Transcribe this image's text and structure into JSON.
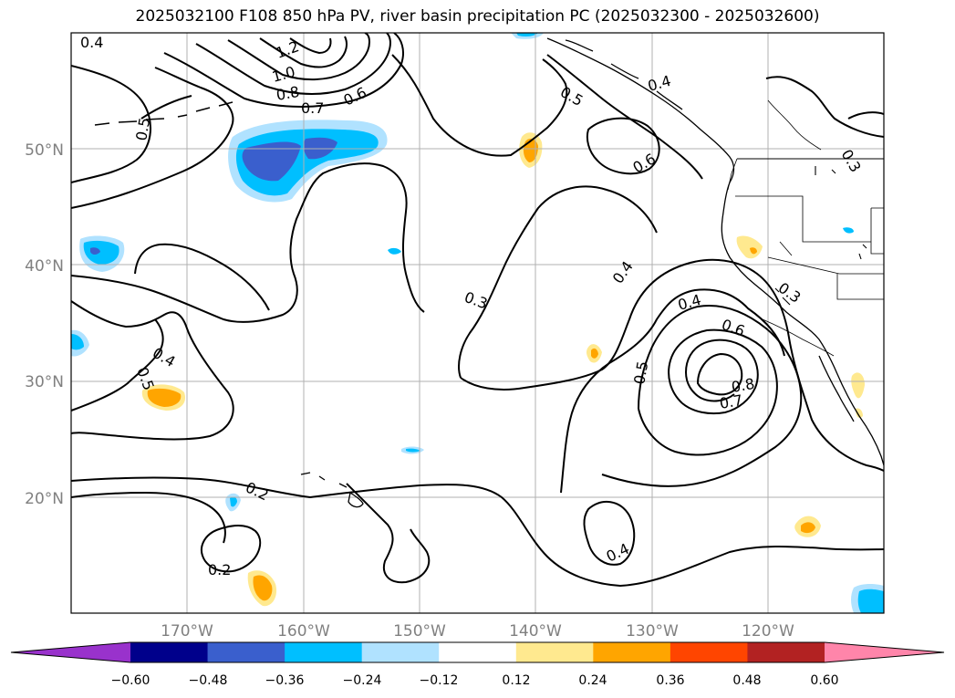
{
  "title": "2025032100 F108 850 hPa PV, river basin precipitation PC (2025032300 - 2025032600)",
  "chart_data": {
    "type": "map",
    "projection": "plate-carree",
    "extent": {
      "lon": [
        -180,
        -110
      ],
      "lat": [
        10,
        60
      ]
    },
    "grid": true,
    "lat_ticks": [
      "20°N",
      "30°N",
      "40°N",
      "50°N"
    ],
    "lon_ticks": [
      "170°W",
      "160°W",
      "150°W",
      "140°W",
      "130°W",
      "120°W"
    ],
    "contour_labels": [
      "0.4",
      "1.2",
      "1.0",
      "0.8",
      "0.7",
      "0.6",
      "0.5",
      "0.5",
      "0.4",
      "0.6",
      "0.3",
      "0.4",
      "0.3",
      "0.4",
      "0.6",
      "0.8",
      "0.7",
      "0.5",
      "0.4",
      "0.5",
      "0.2",
      "0.2",
      "0.4",
      "0.3"
    ],
    "colorbar": {
      "ticks": [
        "−0.60",
        "−0.48",
        "−0.36",
        "−0.24",
        "−0.12",
        "0.12",
        "0.24",
        "0.36",
        "0.48",
        "0.60"
      ],
      "colors": [
        "#9932cc",
        "#00008b",
        "#3a5fcd",
        "#00bfff",
        "#b0e2ff",
        "#ffffff",
        "#ffe98f",
        "#ffa500",
        "#ff4500",
        "#b22222",
        "#ff85aa"
      ],
      "extend": "both"
    }
  }
}
